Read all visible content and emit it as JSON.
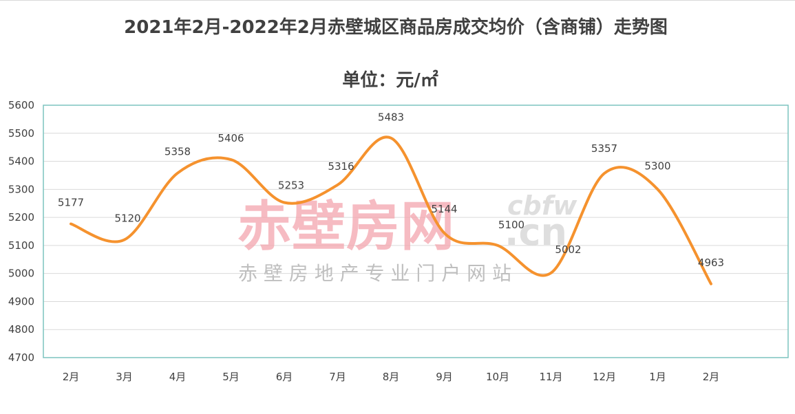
{
  "chart_data": {
    "type": "line",
    "title": "2021年2月-2022年2月赤壁城区商品房成交均价（含商铺）走势图",
    "subtitle": "单位：元/㎡",
    "xlabel": "",
    "ylabel": "",
    "categories": [
      "2月",
      "3月",
      "4月",
      "5月",
      "6月",
      "7月",
      "8月",
      "9月",
      "10月",
      "11月",
      "12月",
      "1月",
      "2月"
    ],
    "series": [
      {
        "values": [
          5177,
          5120,
          5358,
          5406,
          5253,
          5316,
          5483,
          5144,
          5100,
          5002,
          5357,
          5300,
          4963
        ]
      }
    ],
    "ylim": [
      4700,
      5600
    ],
    "yticks": [
      4700,
      4800,
      4900,
      5000,
      5100,
      5200,
      5300,
      5400,
      5500,
      5600
    ],
    "grid": true,
    "smooth": true,
    "line_color": "#F5922E",
    "plot_border_color": "#7CC3BF",
    "grid_color": "#D9D9D9"
  },
  "watermark": {
    "brand": "赤壁房网",
    "domain_top": "cbfw",
    "domain_bottom": ".cn",
    "tagline": "赤 壁 房 地 产 专 业 门 户 网 站",
    "brand_color": "#F4A5AE",
    "domain_color": "#D9D9D9",
    "tagline_color": "#BFBFBF"
  }
}
